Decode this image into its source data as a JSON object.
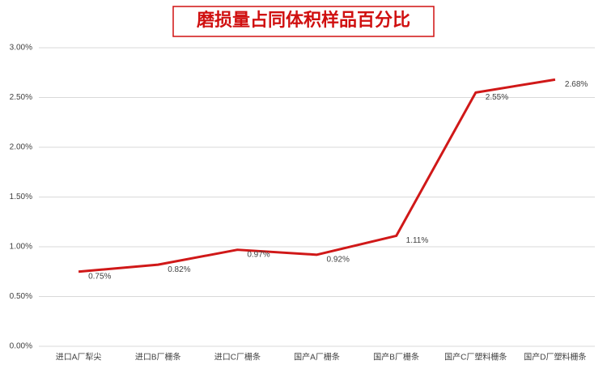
{
  "chart_data": {
    "type": "line",
    "title": "磨损量占同体积样品百分比",
    "categories": [
      "进口A厂犁尖",
      "进口B厂栅条",
      "进口C厂栅条",
      "国产A厂栅条",
      "国产B厂栅条",
      "国产C厂塑料栅条",
      "国产D厂塑料栅条"
    ],
    "series": [
      {
        "name": "磨损量占同体积样品百分比",
        "color": "#d01818",
        "values": [
          0.75,
          0.82,
          0.97,
          0.92,
          1.11,
          2.55,
          2.68
        ],
        "value_labels": [
          "0.75%",
          "0.82%",
          "0.97%",
          "0.92%",
          "1.11%",
          "2.55%",
          "2.68%"
        ]
      }
    ],
    "ylim": [
      0,
      3
    ],
    "yticks": [
      {
        "value": 0,
        "label": "0.00%"
      },
      {
        "value": 0.5,
        "label": "0.50%"
      },
      {
        "value": 1,
        "label": "1.00%"
      },
      {
        "value": 1.5,
        "label": "1.50%"
      },
      {
        "value": 2,
        "label": "2.00%"
      },
      {
        "value": 2.5,
        "label": "2.50%"
      },
      {
        "value": 3,
        "label": "3.00%"
      }
    ],
    "grid": true
  }
}
